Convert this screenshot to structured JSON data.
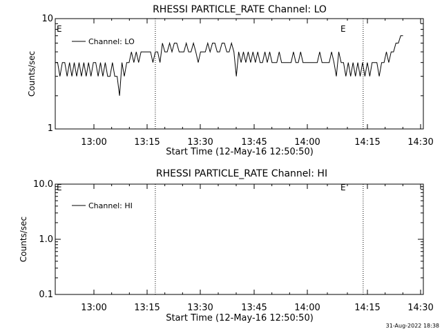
{
  "chart_data": [
    {
      "type": "line",
      "title": "RHESSI PARTICLE_RATE Channel: LO",
      "xlabel": "Start Time (12-May-16 12:50:50)",
      "ylabel": "Counts/sec",
      "yscale": "log",
      "ylim": [
        1,
        10
      ],
      "y_ticks": [
        "1",
        "10"
      ],
      "xlim_minutes": [
        -5.83,
        45.67
      ],
      "x_ticks": [
        "13:00",
        "13:15",
        "13:30",
        "13:45",
        "14:00",
        "14:15",
        "14:30"
      ],
      "legend": {
        "placement": "top-left"
      },
      "series": [
        {
          "name": "Channel: LO",
          "x_minutes": [
            -5.83,
            -5.5,
            -5.17,
            -4.83,
            -4.5,
            -4.17,
            -3.83,
            -3.5,
            -3.17,
            -2.83,
            -2.5,
            -2.17,
            -1.83,
            -1.5,
            -1.17,
            -0.83,
            -0.5,
            -0.17,
            0.17,
            0.5,
            0.83,
            1.17,
            1.5,
            1.83,
            2.17,
            2.5,
            2.83,
            3.17,
            3.5,
            3.83,
            4.17,
            4.5,
            4.83,
            5.17,
            5.5,
            5.83,
            6.17,
            6.5,
            6.83,
            7.17,
            7.5,
            7.83,
            8.17,
            8.5,
            8.83,
            9.17,
            9.5,
            9.83,
            10.17,
            10.5,
            10.83,
            11.17,
            11.5,
            11.83,
            12.17,
            12.5,
            12.83,
            13.17,
            13.5,
            13.83,
            14.17,
            14.5,
            14.83,
            15.17,
            15.5,
            15.83,
            16.17,
            16.5,
            16.83,
            17.17,
            17.5,
            17.83,
            18.17,
            18.5,
            18.83,
            19.17,
            19.5,
            19.83,
            20.17,
            20.5,
            20.83,
            21.17,
            21.5,
            21.83,
            22.17,
            22.5,
            22.83,
            23.17,
            23.5,
            23.83,
            24.17,
            24.5,
            24.83,
            25.17,
            25.5,
            25.83,
            26.17,
            26.5,
            26.83,
            27.17,
            27.5,
            27.83,
            28.17,
            28.5,
            28.83,
            29.17,
            29.5,
            29.83,
            30.17,
            30.5,
            30.83,
            31.17,
            31.5,
            31.83,
            32.17,
            32.5,
            32.83,
            33.17,
            33.5,
            33.83,
            34.17,
            34.5,
            34.83,
            35.17,
            35.5,
            35.83,
            36.17,
            36.5,
            36.83,
            37.17,
            37.5,
            37.83,
            38.17,
            38.5,
            38.83,
            39.17,
            39.5,
            39.83,
            40.17,
            40.5,
            40.83,
            41.17,
            41.5,
            41.83,
            42.17,
            42.5,
            42.83
          ],
          "y": [
            4,
            4,
            3,
            4,
            4,
            3,
            4,
            3,
            4,
            3,
            4,
            3,
            4,
            3,
            4,
            3,
            4,
            4,
            3,
            4,
            3,
            4,
            3,
            3,
            4,
            3,
            3,
            2,
            4,
            3,
            4,
            4,
            5,
            4,
            5,
            4,
            5,
            5,
            5,
            5,
            5,
            4,
            5,
            5,
            4,
            6,
            5,
            5,
            6,
            5,
            6,
            6,
            5,
            5,
            5,
            6,
            5,
            5,
            6,
            5,
            4,
            5,
            5,
            5,
            6,
            5,
            6,
            6,
            5,
            5,
            6,
            6,
            5,
            5,
            6,
            5,
            3,
            5,
            4,
            5,
            4,
            5,
            4,
            5,
            4,
            5,
            4,
            4,
            5,
            4,
            5,
            4,
            4,
            4,
            5,
            4,
            4,
            4,
            4,
            4,
            5,
            4,
            4,
            5,
            4,
            4,
            4,
            4,
            4,
            4,
            4,
            5,
            4,
            4,
            4,
            4,
            5,
            4,
            3,
            5,
            4,
            4,
            3,
            4,
            3,
            4,
            3,
            4,
            3,
            4,
            3,
            4,
            3,
            4,
            4,
            4,
            3,
            4,
            4,
            5,
            4,
            5,
            5,
            6,
            6,
            7,
            7
          ]
        }
      ],
      "annotations": [
        {
          "text": "E",
          "x_minutes": -5.83
        },
        {
          "text": "E",
          "x_minutes": 37.25
        }
      ],
      "markers_x_minutes": [
        8.17,
        37.25,
        45.67
      ]
    },
    {
      "type": "line",
      "title": "RHESSI PARTICLE_RATE Channel: HI",
      "xlabel": "Start Time (12-May-16 12:50:50)",
      "ylabel": "Counts/sec",
      "yscale": "log",
      "ylim": [
        0.1,
        10
      ],
      "y_ticks": [
        "0.1",
        "1.0",
        "10.0"
      ],
      "xlim_minutes": [
        -5.83,
        45.67
      ],
      "x_ticks": [
        "13:00",
        "13:15",
        "13:30",
        "13:45",
        "14:00",
        "14:15",
        "14:30"
      ],
      "legend": {
        "placement": "top-left"
      },
      "series": [
        {
          "name": "Channel: HI",
          "x_minutes": [],
          "y": []
        }
      ],
      "annotations": [
        {
          "text": "E",
          "x_minutes": -5.83
        },
        {
          "text": "E",
          "x_minutes": 37.25
        }
      ],
      "markers_x_minutes": [
        8.17,
        37.25,
        45.67
      ]
    }
  ],
  "footer": {
    "timestamp": "31-Aug-2022 18:38"
  }
}
